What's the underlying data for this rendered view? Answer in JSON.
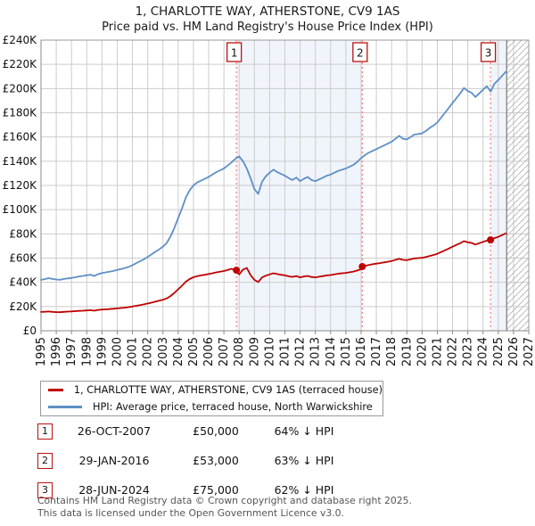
{
  "header": {
    "title": "1, CHARLOTTE WAY, ATHERSTONE, CV9 1AS",
    "subtitle": "Price paid vs. HM Land Registry's House Price Index (HPI)"
  },
  "chart_data": {
    "type": "line",
    "title": "1, CHARLOTTE WAY, ATHERSTONE, CV9 1AS",
    "subtitle": "Price paid vs. HM Land Registry's House Price Index (HPI)",
    "x_axis": {
      "start": 1995,
      "end": 2027,
      "ticks": [
        1995,
        1996,
        1997,
        1998,
        1999,
        2000,
        2001,
        2002,
        2003,
        2004,
        2005,
        2006,
        2007,
        2008,
        2009,
        2010,
        2011,
        2012,
        2013,
        2014,
        2015,
        2016,
        2017,
        2018,
        2019,
        2020,
        2021,
        2022,
        2023,
        2024,
        2025,
        2026,
        2027
      ]
    },
    "y_axis": {
      "min": 0,
      "max": 240000,
      "tick_step": 20000,
      "tick_labels": [
        "£0",
        "£20K",
        "£40K",
        "£60K",
        "£80K",
        "£100K",
        "£120K",
        "£140K",
        "£160K",
        "£180K",
        "£200K",
        "£220K",
        "£240K"
      ]
    },
    "series": [
      {
        "name": "1, CHARLOTTE WAY, ATHERSTONE, CV9 1AS (terraced house)",
        "color": "#c00000",
        "x_start": 1995.0,
        "x_step": 0.25,
        "values_gbp_k": [
          15.5,
          15.7,
          15.9,
          15.6,
          15.4,
          15.3,
          15.6,
          15.8,
          16.0,
          16.2,
          16.4,
          16.6,
          16.8,
          17.0,
          16.6,
          17.2,
          17.5,
          17.7,
          17.9,
          18.2,
          18.5,
          18.8,
          19.1,
          19.5,
          20.0,
          20.6,
          21.2,
          21.8,
          22.5,
          23.2,
          24.0,
          24.8,
          25.6,
          26.7,
          28.7,
          31.3,
          34.2,
          37.2,
          40.5,
          42.7,
          44.2,
          45.1,
          45.7,
          46.2,
          46.8,
          47.5,
          48.2,
          48.8,
          49.3,
          50.2,
          51.2,
          50.0,
          46.5,
          50.5,
          51.8,
          46.0,
          42.0,
          40.2,
          44.0,
          45.5,
          46.5,
          47.5,
          46.8,
          46.2,
          45.7,
          45.0,
          44.5,
          45.2,
          44.1,
          44.8,
          45.3,
          44.4,
          44.1,
          44.6,
          45.1,
          45.7,
          46.0,
          46.6,
          47.1,
          47.5,
          47.8,
          48.3,
          48.9,
          49.8,
          50.8,
          53.6,
          54.3,
          54.9,
          55.4,
          55.9,
          56.5,
          57.0,
          57.6,
          58.5,
          59.4,
          58.5,
          58.3,
          59.0,
          59.8,
          60.0,
          60.2,
          60.9,
          61.8,
          62.6,
          63.5,
          65.0,
          66.4,
          67.9,
          69.4,
          70.9,
          72.3,
          74.0,
          73.1,
          72.5,
          71.2,
          72.3,
          73.4,
          74.5,
          75.0,
          76.5,
          77.5,
          79.0,
          80.5
        ]
      },
      {
        "name": "HPI: Average price, terraced house, North Warwickshire",
        "color": "#5e8fc7",
        "x_start": 1995.0,
        "x_step": 0.25,
        "values_gbp_k": [
          42.0,
          42.6,
          43.4,
          42.8,
          42.3,
          42.0,
          42.8,
          43.2,
          43.6,
          44.2,
          44.8,
          45.3,
          45.8,
          46.3,
          45.2,
          46.8,
          47.6,
          48.2,
          48.8,
          49.4,
          50.2,
          51.0,
          51.8,
          52.8,
          54.2,
          55.8,
          57.4,
          59.0,
          61.0,
          63.0,
          65.2,
          67.2,
          69.5,
          72.5,
          78.0,
          85.0,
          93.0,
          101.0,
          110.0,
          116.0,
          120.0,
          122.5,
          124.0,
          125.5,
          127.0,
          129.0,
          131.0,
          132.5,
          134.0,
          136.5,
          139.0,
          142.0,
          144.0,
          140.0,
          134.0,
          126.0,
          117.0,
          113.0,
          123.0,
          127.5,
          130.5,
          133.0,
          131.0,
          129.5,
          128.0,
          126.0,
          124.5,
          126.5,
          123.5,
          125.5,
          127.0,
          124.5,
          123.5,
          125.0,
          126.5,
          128.0,
          129.0,
          130.5,
          132.0,
          133.0,
          134.0,
          135.5,
          137.0,
          139.5,
          142.5,
          145.0,
          147.0,
          148.5,
          150.0,
          151.5,
          153.0,
          154.5,
          156.0,
          158.5,
          161.0,
          158.5,
          158.0,
          160.0,
          162.0,
          162.5,
          163.0,
          165.0,
          167.5,
          169.5,
          172.0,
          176.0,
          180.0,
          184.0,
          188.0,
          192.0,
          196.0,
          200.5,
          198.0,
          196.5,
          193.0,
          196.0,
          199.0,
          202.0,
          197.5,
          204.0,
          207.0,
          210.5,
          214.0
        ]
      }
    ],
    "sales": [
      {
        "label": "1",
        "date": "26-OCT-2007",
        "price": "£50,000",
        "vs_hpi": "64% ↓ HPI",
        "year": 2007.82,
        "value_gbp_k": 50
      },
      {
        "label": "2",
        "date": "29-JAN-2016",
        "price": "£53,000",
        "vs_hpi": "63% ↓ HPI",
        "year": 2016.08,
        "value_gbp_k": 53
      },
      {
        "label": "3",
        "date": "28-JUN-2024",
        "price": "£75,000",
        "vs_hpi": "62% ↓ HPI",
        "year": 2024.49,
        "value_gbp_k": 75
      }
    ],
    "shaded_periods": [
      {
        "from": 2007.82,
        "to": 2016.08
      },
      {
        "from": 2024.49,
        "to": 2025.55
      }
    ],
    "no_data_hatch": {
      "from": 2025.55,
      "to": 2027
    },
    "data_end": 2025.55,
    "legend_position": "bottom-left",
    "grid": true,
    "colors": {
      "property": "#c00000",
      "hpi": "#5e8fc7",
      "shade": "#f0f4fb",
      "grid": "#cccccc",
      "frame": "#999999",
      "dashed": "#f08080",
      "hatch": "#bbbbbb",
      "marker_border": "#bb1111"
    }
  },
  "footer": {
    "line1": "Contains HM Land Registry data © Crown copyright and database right 2025.",
    "line2": "This data is licensed under the Open Government Licence v3.0."
  }
}
